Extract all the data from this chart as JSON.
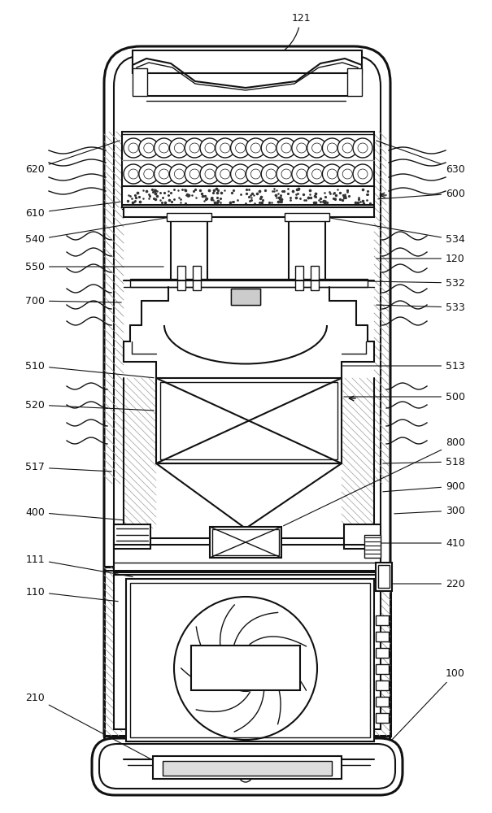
{
  "bg_color": "#ffffff",
  "line_color": "#111111",
  "figsize": [
    6.05,
    10.0
  ],
  "dpi": 100,
  "labels_left": [
    [
      "620",
      55,
      208
    ],
    [
      "610",
      55,
      262
    ],
    [
      "540",
      55,
      295
    ],
    [
      "550",
      55,
      328
    ],
    [
      "700",
      55,
      370
    ],
    [
      "510",
      55,
      450
    ],
    [
      "520",
      55,
      498
    ],
    [
      "517",
      55,
      575
    ],
    [
      "400",
      55,
      630
    ],
    [
      "111",
      55,
      688
    ],
    [
      "110",
      55,
      728
    ],
    [
      "210",
      55,
      858
    ]
  ],
  "labels_right": [
    [
      "630",
      548,
      208
    ],
    [
      "600",
      548,
      238
    ],
    [
      "534",
      548,
      295
    ],
    [
      "120",
      548,
      318
    ],
    [
      "532",
      548,
      348
    ],
    [
      "533",
      548,
      378
    ],
    [
      "513",
      548,
      450
    ],
    [
      "500",
      548,
      488
    ],
    [
      "800",
      548,
      545
    ],
    [
      "518",
      548,
      568
    ],
    [
      "900",
      548,
      598
    ],
    [
      "300",
      548,
      628
    ],
    [
      "410",
      548,
      668
    ],
    [
      "220",
      548,
      718
    ],
    [
      "100",
      548,
      828
    ]
  ]
}
